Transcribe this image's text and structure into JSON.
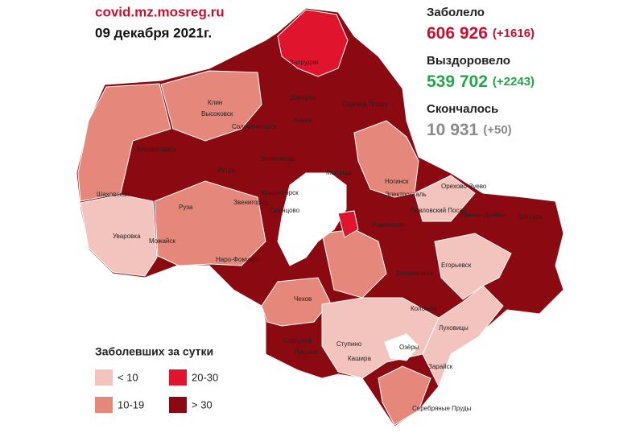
{
  "header": {
    "source": "covid.mz.mosreg.ru",
    "date": "09 декабря 2021г."
  },
  "stats": [
    {
      "label": "Заболело",
      "value": "606 926",
      "delta": "(+1616)",
      "color": "#c8102e"
    },
    {
      "label": "Выздоровело",
      "value": "539 702",
      "delta": "(+2243)",
      "color": "#23a64a"
    },
    {
      "label": "Скончалось",
      "value": "10 931",
      "delta": "(+50)",
      "color": "#8a8a8a"
    }
  ],
  "legend": {
    "title": "Заболевших за сутки",
    "items": [
      {
        "label": "< 10",
        "color": "#f2c4bd"
      },
      {
        "label": "10-19",
        "color": "#e5877a"
      },
      {
        "label": "20-30",
        "color": "#e0142c"
      },
      {
        "label": "> 30",
        "color": "#8b0a12"
      }
    ]
  },
  "places": [
    "Запрудня",
    "Клин",
    "Высоковск",
    "Солнечногорск",
    "Дмитров",
    "Сергиев Посад",
    "Химки",
    "Шаховская",
    "Волоколамск",
    "Истра",
    "Зеленоград",
    "Красногорск",
    "Мытищи",
    "Ногинск",
    "Электросталь",
    "Павловский Посад",
    "Орехово-Зуево",
    "Руза",
    "Звенигород",
    "Одинцово",
    "Уваровка",
    "Можайск",
    "Наро-Фоминск",
    "Раменское",
    "Ликино-Дулёво",
    "Шатура",
    "Егорьевск",
    "Воскресенск",
    "Коломна",
    "Чехов",
    "Серпухов",
    "Пущино",
    "Ступино",
    "Озёры",
    "Кашира",
    "Зарайск",
    "Луховицы",
    "Серебряные Пруды"
  ]
}
